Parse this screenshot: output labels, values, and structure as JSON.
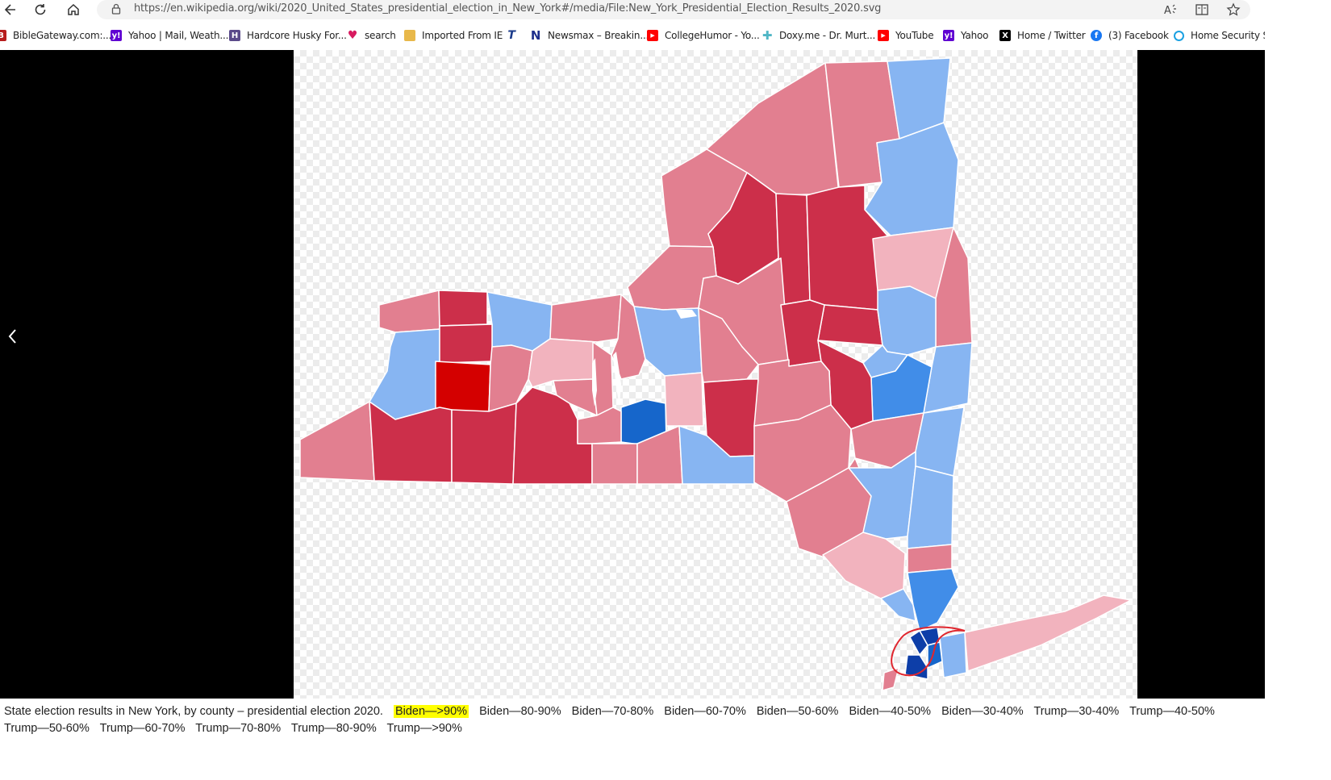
{
  "browser": {
    "url": "https://en.wikipedia.org/wiki/2020_United_States_presidential_election_in_New_York#/media/File:New_York_Presidential_Election_Results_2020.svg",
    "icons": [
      "back-icon",
      "refresh-icon",
      "home-icon",
      "lock-icon",
      "read-aloud-icon",
      "immersive-reader-icon",
      "favorite-star-icon"
    ]
  },
  "bookmarks": [
    {
      "label": "BibleGateway.com:...",
      "icon": "biblegateway-icon",
      "color": "#b71c1c"
    },
    {
      "label": "Yahoo | Mail, Weath...",
      "icon": "yahoo-icon",
      "color": "#6001d2"
    },
    {
      "label": "Hardcore Husky For...",
      "icon": "husky-forum-icon",
      "color": "#5b4a8a"
    },
    {
      "label": "search",
      "icon": "heart-icon",
      "color": "#d81b60"
    },
    {
      "label": "Imported From IE",
      "icon": "folder-icon",
      "color": "#e8b84a"
    },
    {
      "label": "",
      "icon": "t-logo-icon",
      "color": "#1a3a8a"
    },
    {
      "label": "Newsmax – Breakin...",
      "icon": "newsmax-icon",
      "color": "#1d2e8c"
    },
    {
      "label": "CollegeHumor - Yo...",
      "icon": "youtube-icon",
      "color": "#ff0000"
    },
    {
      "label": "Doxy.me - Dr. Murt...",
      "icon": "doxy-icon",
      "color": "#4fb6c5"
    },
    {
      "label": "YouTube",
      "icon": "youtube-icon",
      "color": "#ff0000"
    },
    {
      "label": "Yahoo",
      "icon": "yahoo-icon",
      "color": "#6001d2"
    },
    {
      "label": "Home / Twitter",
      "icon": "x-icon",
      "color": "#000000"
    },
    {
      "label": "(3) Facebook",
      "icon": "facebook-icon",
      "color": "#1877f2"
    },
    {
      "label": "Home Security Sys",
      "icon": "security-icon",
      "color": "#1ba1e2"
    }
  ],
  "viewer": {
    "prev_icon": "chevron-left-icon",
    "caption": "State election results in New York, by county – presidential election 2020.",
    "legend": [
      {
        "label": "Biden—>90%",
        "color": "#0645ad",
        "highlighted": true
      },
      {
        "label": "Biden—80-90%",
        "color": "#0d56c4",
        "highlighted": false
      },
      {
        "label": "Biden—70-80%",
        "color": "#1666cb",
        "highlighted": false
      },
      {
        "label": "Biden—60-70%",
        "color": "#418de8",
        "highlighted": false
      },
      {
        "label": "Biden—50-60%",
        "color": "#87b5f2",
        "highlighted": false
      },
      {
        "label": "Biden—40-50%",
        "color": "#a5c8f5",
        "highlighted": false
      },
      {
        "label": "Biden—30-40%",
        "color": "#c6dcf8",
        "highlighted": false
      },
      {
        "label": "Trump—30-40%",
        "color": "#f2b3be",
        "highlighted": false
      },
      {
        "label": "Trump—40-50%",
        "color": "#eba0ac",
        "highlighted": false
      },
      {
        "label": "Trump—50-60%",
        "color": "#e27f90",
        "highlighted": false
      },
      {
        "label": "Trump—60-70%",
        "color": "#cc2f4a",
        "highlighted": false
      },
      {
        "label": "Trump—70-80%",
        "color": "#d40000",
        "highlighted": false
      },
      {
        "label": "Trump—80-90%",
        "color": "#aa0000",
        "highlighted": false
      },
      {
        "label": "Trump—>90%",
        "color": "#800000",
        "highlighted": false
      }
    ],
    "annotation": "red hand-drawn circle around New York City",
    "colors": {
      "trump_light": "#f2b3be",
      "trump_mid": "#e27f90",
      "trump_dark": "#cc2f4a",
      "trump_darkest": "#d40000",
      "biden_light": "#87b5f2",
      "biden_mid": "#418de8",
      "biden_dark": "#1666cb",
      "biden_darkest": "#0d3ea8"
    }
  }
}
